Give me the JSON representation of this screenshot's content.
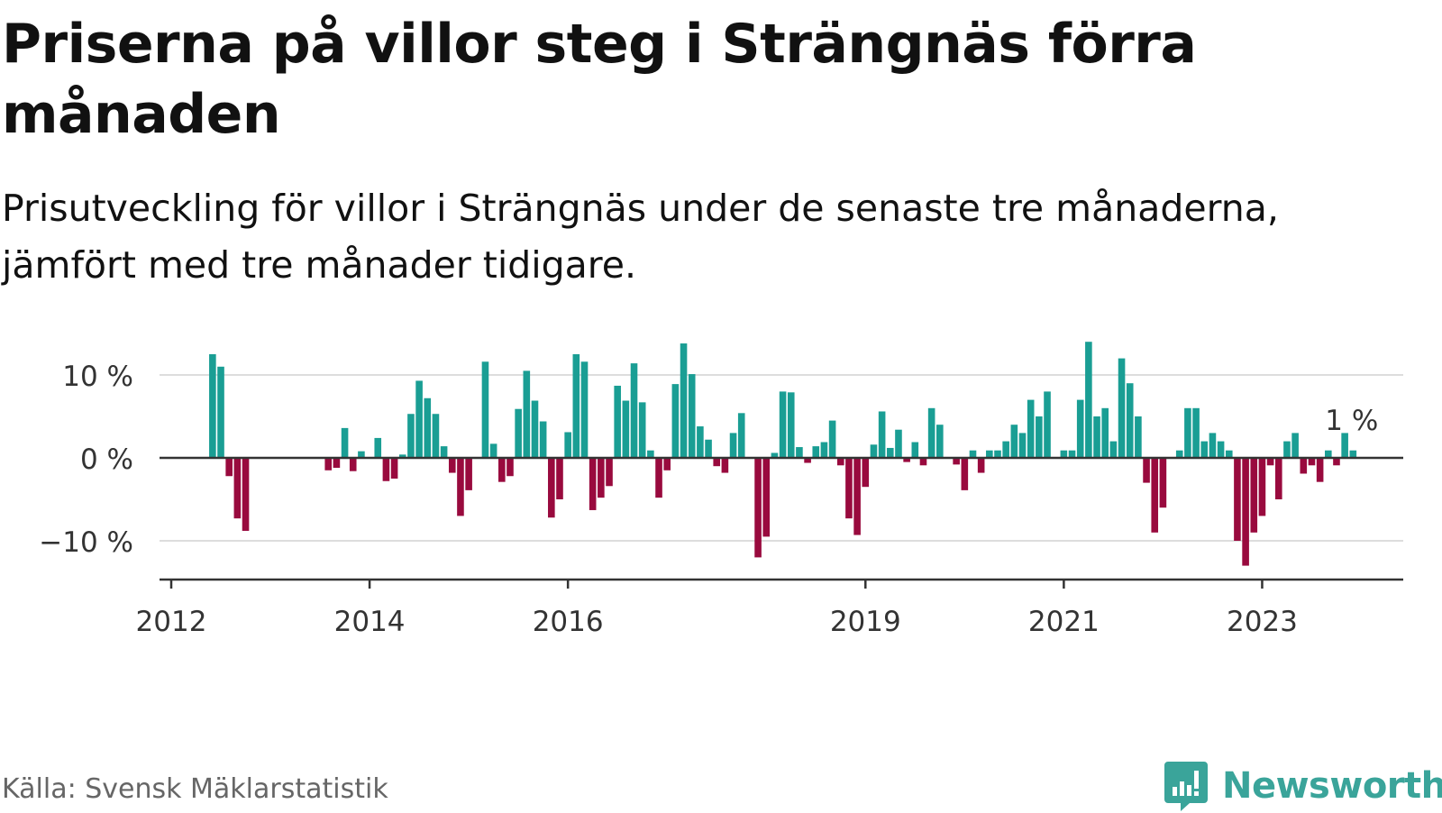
{
  "header": {
    "title": "Priserna på villor steg i Strängnäs förra månaden",
    "subtitle": "Prisutveckling för villor i Strängnäs under de senaste tre månaderna, jämfört med tre månader tidigare."
  },
  "footer": {
    "source": "Källa: Svensk Mäklarstatistik",
    "brand": "Newsworthy"
  },
  "colors": {
    "positive": "#1a9e94",
    "negative": "#990a3e",
    "grid": "#dddddd",
    "axis": "#333333",
    "brand": "#3aa49a"
  },
  "chart_data": {
    "type": "bar",
    "title": "",
    "xlabel": "",
    "ylabel": "",
    "ylim": [
      -15,
      15
    ],
    "yticks": [
      {
        "value": 10,
        "label": "10 %"
      },
      {
        "value": 0,
        "label": "0 %"
      },
      {
        "value": -10,
        "label": "−10 %"
      }
    ],
    "xticks": [
      {
        "date": "2012-01",
        "label": "2012"
      },
      {
        "date": "2014-01",
        "label": "2014"
      },
      {
        "date": "2016-01",
        "label": "2016"
      },
      {
        "date": "2019-01",
        "label": "2019"
      },
      {
        "date": "2021-01",
        "label": "2021"
      },
      {
        "date": "2023-01",
        "label": "2023"
      }
    ],
    "grid": true,
    "annotation": {
      "date": "2023-09",
      "label": "1 %"
    },
    "series": [
      {
        "values": [
          {
            "date": "2012-06",
            "value": 12.5
          },
          {
            "date": "2012-07",
            "value": 11
          },
          {
            "date": "2012-08",
            "value": -2.2
          },
          {
            "date": "2012-09",
            "value": -7.3
          },
          {
            "date": "2012-10",
            "value": -8.8
          },
          {
            "date": "2013-08",
            "value": -1.5
          },
          {
            "date": "2013-09",
            "value": -1.2
          },
          {
            "date": "2013-10",
            "value": 3.6
          },
          {
            "date": "2013-11",
            "value": -1.6
          },
          {
            "date": "2013-12",
            "value": 0.8
          },
          {
            "date": "2014-02",
            "value": 2.4
          },
          {
            "date": "2014-03",
            "value": -2.8
          },
          {
            "date": "2014-04",
            "value": -2.5
          },
          {
            "date": "2014-05",
            "value": 0.4
          },
          {
            "date": "2014-06",
            "value": 5.3
          },
          {
            "date": "2014-07",
            "value": 9.3
          },
          {
            "date": "2014-08",
            "value": 7.2
          },
          {
            "date": "2014-09",
            "value": 5.3
          },
          {
            "date": "2014-10",
            "value": 1.4
          },
          {
            "date": "2014-11",
            "value": -1.8
          },
          {
            "date": "2014-12",
            "value": -7
          },
          {
            "date": "2015-01",
            "value": -3.9
          },
          {
            "date": "2015-03",
            "value": 11.6
          },
          {
            "date": "2015-04",
            "value": 1.7
          },
          {
            "date": "2015-05",
            "value": -2.9
          },
          {
            "date": "2015-06",
            "value": -2.2
          },
          {
            "date": "2015-07",
            "value": 5.9
          },
          {
            "date": "2015-08",
            "value": 10.5
          },
          {
            "date": "2015-09",
            "value": 6.9
          },
          {
            "date": "2015-10",
            "value": 4.4
          },
          {
            "date": "2015-11",
            "value": -7.2
          },
          {
            "date": "2015-12",
            "value": -5
          },
          {
            "date": "2016-01",
            "value": 3.1
          },
          {
            "date": "2016-02",
            "value": 12.5
          },
          {
            "date": "2016-03",
            "value": 11.6
          },
          {
            "date": "2016-04",
            "value": -6.3
          },
          {
            "date": "2016-05",
            "value": -4.8
          },
          {
            "date": "2016-06",
            "value": -3.4
          },
          {
            "date": "2016-07",
            "value": 8.7
          },
          {
            "date": "2016-08",
            "value": 6.9
          },
          {
            "date": "2016-09",
            "value": 11.4
          },
          {
            "date": "2016-10",
            "value": 6.7
          },
          {
            "date": "2016-11",
            "value": 0.9
          },
          {
            "date": "2016-12",
            "value": -4.8
          },
          {
            "date": "2017-01",
            "value": -1.5
          },
          {
            "date": "2017-02",
            "value": 8.9
          },
          {
            "date": "2017-03",
            "value": 13.8
          },
          {
            "date": "2017-04",
            "value": 10.1
          },
          {
            "date": "2017-05",
            "value": 3.8
          },
          {
            "date": "2017-06",
            "value": 2.2
          },
          {
            "date": "2017-07",
            "value": -1
          },
          {
            "date": "2017-08",
            "value": -1.8
          },
          {
            "date": "2017-09",
            "value": 3
          },
          {
            "date": "2017-10",
            "value": 5.4
          },
          {
            "date": "2017-12",
            "value": -12
          },
          {
            "date": "2018-01",
            "value": -9.5
          },
          {
            "date": "2018-02",
            "value": 0.6
          },
          {
            "date": "2018-03",
            "value": 8
          },
          {
            "date": "2018-04",
            "value": 7.9
          },
          {
            "date": "2018-05",
            "value": 1.3
          },
          {
            "date": "2018-06",
            "value": -0.6
          },
          {
            "date": "2018-07",
            "value": 1.4
          },
          {
            "date": "2018-08",
            "value": 1.9
          },
          {
            "date": "2018-09",
            "value": 4.5
          },
          {
            "date": "2018-10",
            "value": -0.9
          },
          {
            "date": "2018-11",
            "value": -7.3
          },
          {
            "date": "2018-12",
            "value": -9.3
          },
          {
            "date": "2019-01",
            "value": -3.5
          },
          {
            "date": "2019-02",
            "value": 1.6
          },
          {
            "date": "2019-03",
            "value": 5.6
          },
          {
            "date": "2019-04",
            "value": 1.2
          },
          {
            "date": "2019-05",
            "value": 3.4
          },
          {
            "date": "2019-06",
            "value": -0.5
          },
          {
            "date": "2019-07",
            "value": 1.9
          },
          {
            "date": "2019-08",
            "value": -0.9
          },
          {
            "date": "2019-09",
            "value": 6
          },
          {
            "date": "2019-10",
            "value": 4
          },
          {
            "date": "2019-12",
            "value": -0.8
          },
          {
            "date": "2020-01",
            "value": -3.9
          },
          {
            "date": "2020-02",
            "value": 0.9
          },
          {
            "date": "2020-03",
            "value": -1.8
          },
          {
            "date": "2020-04",
            "value": 0.9
          },
          {
            "date": "2020-05",
            "value": 0.9
          },
          {
            "date": "2020-06",
            "value": 2
          },
          {
            "date": "2020-07",
            "value": 4
          },
          {
            "date": "2020-08",
            "value": 3
          },
          {
            "date": "2020-09",
            "value": 7
          },
          {
            "date": "2020-10",
            "value": 5
          },
          {
            "date": "2020-11",
            "value": 8
          },
          {
            "date": "2021-01",
            "value": 0.9
          },
          {
            "date": "2021-02",
            "value": 0.9
          },
          {
            "date": "2021-03",
            "value": 7
          },
          {
            "date": "2021-04",
            "value": 14
          },
          {
            "date": "2021-05",
            "value": 5
          },
          {
            "date": "2021-06",
            "value": 6
          },
          {
            "date": "2021-07",
            "value": 2
          },
          {
            "date": "2021-08",
            "value": 12
          },
          {
            "date": "2021-09",
            "value": 9
          },
          {
            "date": "2021-10",
            "value": 5
          },
          {
            "date": "2021-11",
            "value": -3
          },
          {
            "date": "2021-12",
            "value": -9
          },
          {
            "date": "2022-01",
            "value": -6
          },
          {
            "date": "2022-03",
            "value": 0.9
          },
          {
            "date": "2022-04",
            "value": 6
          },
          {
            "date": "2022-05",
            "value": 6
          },
          {
            "date": "2022-06",
            "value": 2
          },
          {
            "date": "2022-07",
            "value": 3
          },
          {
            "date": "2022-08",
            "value": 2
          },
          {
            "date": "2022-09",
            "value": 0.9
          },
          {
            "date": "2022-10",
            "value": -10
          },
          {
            "date": "2022-11",
            "value": -13
          },
          {
            "date": "2022-12",
            "value": -9
          },
          {
            "date": "2023-01",
            "value": -7
          },
          {
            "date": "2023-02",
            "value": -0.9
          },
          {
            "date": "2023-03",
            "value": -5
          },
          {
            "date": "2023-04",
            "value": 2
          },
          {
            "date": "2023-05",
            "value": 3
          },
          {
            "date": "2023-06",
            "value": -1.9
          },
          {
            "date": "2023-07",
            "value": -0.9
          },
          {
            "date": "2023-08",
            "value": -2.9
          },
          {
            "date": "2023-09",
            "value": 0.9
          },
          {
            "date": "2023-10",
            "value": -0.9
          },
          {
            "date": "2023-11",
            "value": 3
          },
          {
            "date": "2023-12",
            "value": 0.9
          }
        ]
      }
    ]
  }
}
